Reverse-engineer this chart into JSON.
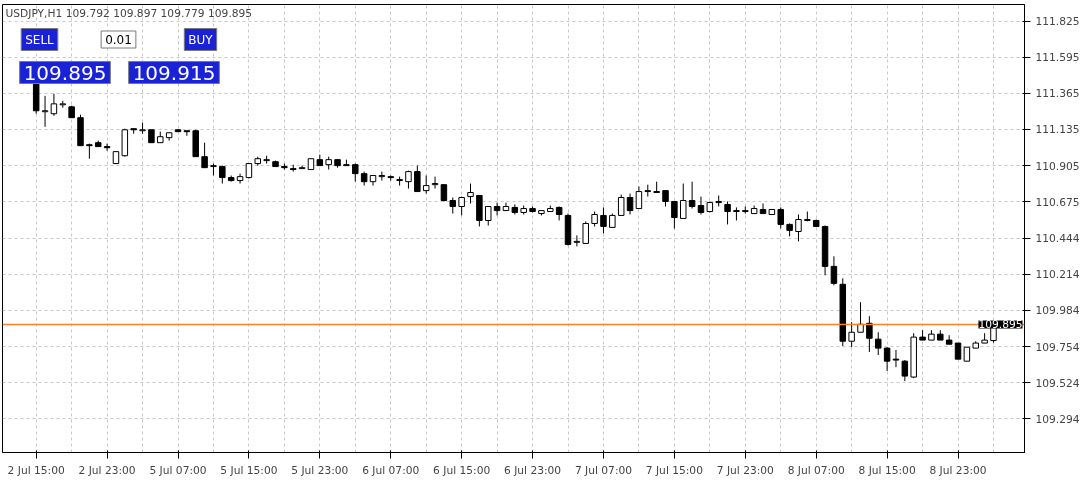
{
  "chart_data": {
    "type": "candlestick",
    "title": "USDJPY,H1 109.792 109.897 109.779 109.895",
    "color": "#000000",
    "categories": [
      "2 Jul 15:00",
      null,
      null,
      null,
      null,
      null,
      null,
      null,
      "2 Jul 23:00",
      null,
      null,
      null,
      null,
      null,
      null,
      null,
      "5 Jul 07:00",
      null,
      null,
      null,
      null,
      null,
      null,
      null,
      "5 Jul 15:00",
      null,
      null,
      null,
      null,
      null,
      null,
      null,
      "5 Jul 23:00",
      null,
      null,
      null,
      null,
      null,
      null,
      null,
      "6 Jul 07:00",
      null,
      null,
      null,
      null,
      null,
      null,
      null,
      "6 Jul 15:00",
      null,
      null,
      null,
      null,
      null,
      null,
      null,
      "6 Jul 23:00",
      null,
      null,
      null,
      null,
      null,
      null,
      null,
      "7 Jul 07:00",
      null,
      null,
      null,
      null,
      null,
      null,
      null,
      "7 Jul 15:00",
      null,
      null,
      null,
      null,
      null,
      null,
      null,
      "7 Jul 23:00",
      null,
      null,
      null,
      null,
      null,
      null,
      null,
      "8 Jul 07:00",
      null,
      null,
      null,
      null,
      null,
      null,
      null,
      "8 Jul 15:00",
      null,
      null,
      null,
      null,
      null,
      null,
      null,
      "8 Jul 23:00",
      null,
      null,
      null,
      null
    ],
    "ohlc": [
      [
        111.425,
        111.432,
        111.235,
        111.254
      ],
      [
        111.248,
        111.349,
        111.152,
        111.254
      ],
      [
        111.235,
        111.362,
        111.222,
        111.298
      ],
      [
        111.292,
        111.317,
        111.273,
        111.298
      ],
      [
        111.279,
        111.286,
        111.21,
        111.21
      ],
      [
        111.21,
        111.229,
        111.032,
        111.032
      ],
      [
        111.038,
        111.045,
        110.949,
        111.032
      ],
      [
        111.051,
        111.064,
        111.026,
        111.026
      ],
      [
        111.026,
        111.045,
        111.0,
        111.019
      ],
      [
        110.918,
        110.994,
        110.918,
        110.994
      ],
      [
        110.968,
        111.14,
        110.962,
        111.133
      ],
      [
        111.14,
        111.14,
        111.108,
        111.133
      ],
      [
        111.127,
        111.178,
        111.108,
        111.133
      ],
      [
        111.133,
        111.133,
        111.051,
        111.051
      ],
      [
        111.051,
        111.121,
        111.051,
        111.089
      ],
      [
        111.083,
        111.114,
        111.064,
        111.114
      ],
      [
        111.133,
        111.133,
        111.121,
        111.121
      ],
      [
        111.127,
        111.127,
        111.095,
        111.121
      ],
      [
        111.127,
        111.133,
        110.962,
        110.962
      ],
      [
        110.962,
        111.051,
        110.892,
        110.892
      ],
      [
        110.899,
        110.918,
        110.842,
        110.905
      ],
      [
        110.899,
        110.905,
        110.791,
        110.829
      ],
      [
        110.829,
        110.842,
        110.803,
        110.81
      ],
      [
        110.81,
        110.854,
        110.791,
        110.835
      ],
      [
        110.829,
        110.918,
        110.823,
        110.918
      ],
      [
        110.918,
        110.962,
        110.905,
        110.949
      ],
      [
        110.937,
        110.968,
        110.918,
        110.943
      ],
      [
        110.93,
        110.937,
        110.899,
        110.899
      ],
      [
        110.899,
        110.918,
        110.88,
        110.892
      ],
      [
        110.886,
        110.911,
        110.867,
        110.88
      ],
      [
        110.886,
        110.905,
        110.886,
        110.892
      ],
      [
        110.88,
        110.949,
        110.88,
        110.949
      ],
      [
        110.943,
        110.975,
        110.905,
        110.905
      ],
      [
        110.911,
        110.962,
        110.88,
        110.943
      ],
      [
        110.943,
        110.943,
        110.892,
        110.905
      ],
      [
        110.911,
        110.943,
        110.905,
        110.905
      ],
      [
        110.911,
        110.918,
        110.803,
        110.854
      ],
      [
        110.854,
        110.867,
        110.778,
        110.803
      ],
      [
        110.803,
        110.842,
        110.778,
        110.842
      ],
      [
        110.835,
        110.867,
        110.81,
        110.842
      ],
      [
        110.835,
        110.842,
        110.81,
        110.829
      ],
      [
        110.816,
        110.835,
        110.778,
        110.81
      ],
      [
        110.803,
        110.873,
        110.759,
        110.867
      ],
      [
        110.867,
        110.905,
        110.74,
        110.74
      ],
      [
        110.746,
        110.842,
        110.727,
        110.778
      ],
      [
        110.784,
        110.835,
        110.759,
        110.791
      ],
      [
        110.784,
        110.784,
        110.677,
        110.683
      ],
      [
        110.683,
        110.702,
        110.6,
        110.645
      ],
      [
        110.645,
        110.708,
        110.588,
        110.702
      ],
      [
        110.708,
        110.791,
        110.664,
        110.734
      ],
      [
        110.715,
        110.715,
        110.518,
        110.556
      ],
      [
        110.556,
        110.645,
        110.524,
        110.645
      ],
      [
        110.645,
        110.67,
        110.588,
        110.619
      ],
      [
        110.619,
        110.67,
        110.619,
        110.645
      ],
      [
        110.639,
        110.658,
        110.594,
        110.607
      ],
      [
        110.607,
        110.651,
        110.594,
        110.632
      ],
      [
        110.632,
        110.645,
        110.607,
        110.613
      ],
      [
        110.6,
        110.619,
        110.588,
        110.619
      ],
      [
        110.613,
        110.651,
        110.613,
        110.632
      ],
      [
        110.639,
        110.645,
        110.556,
        110.594
      ],
      [
        110.588,
        110.6,
        110.397,
        110.404
      ],
      [
        110.417,
        110.461,
        110.391,
        110.423
      ],
      [
        110.41,
        110.55,
        110.41,
        110.537
      ],
      [
        110.537,
        110.613,
        110.518,
        110.594
      ],
      [
        110.588,
        110.639,
        110.474,
        110.518
      ],
      [
        110.512,
        110.6,
        110.512,
        110.588
      ],
      [
        110.588,
        110.721,
        110.588,
        110.702
      ],
      [
        110.702,
        110.727,
        110.594,
        110.619
      ],
      [
        110.632,
        110.772,
        110.632,
        110.74
      ],
      [
        110.74,
        110.784,
        110.708,
        110.746
      ],
      [
        110.74,
        110.803,
        110.734,
        110.734
      ],
      [
        110.746,
        110.746,
        110.645,
        110.677
      ],
      [
        110.677,
        110.677,
        110.505,
        110.575
      ],
      [
        110.569,
        110.791,
        110.569,
        110.683
      ],
      [
        110.683,
        110.803,
        110.632,
        110.645
      ],
      [
        110.651,
        110.708,
        110.594,
        110.607
      ],
      [
        110.613,
        110.677,
        110.607,
        110.67
      ],
      [
        110.67,
        110.715,
        110.645,
        110.677
      ],
      [
        110.658,
        110.677,
        110.531,
        110.613
      ],
      [
        110.619,
        110.639,
        110.556,
        110.613
      ],
      [
        110.613,
        110.645,
        110.6,
        110.619
      ],
      [
        110.6,
        110.651,
        110.6,
        110.632
      ],
      [
        110.626,
        110.664,
        110.6,
        110.6
      ],
      [
        110.594,
        110.626,
        110.594,
        110.626
      ],
      [
        110.626,
        110.639,
        110.505,
        110.531
      ],
      [
        110.531,
        110.537,
        110.455,
        110.493
      ],
      [
        110.486,
        110.594,
        110.423,
        110.562
      ],
      [
        110.556,
        110.613,
        110.55,
        110.562
      ],
      [
        110.556,
        110.562,
        110.518,
        110.518
      ],
      [
        110.518,
        110.524,
        110.207,
        110.264
      ],
      [
        110.264,
        110.328,
        110.144,
        110.156
      ],
      [
        110.15,
        110.188,
        109.757,
        109.788
      ],
      [
        109.788,
        109.909,
        109.75,
        109.845
      ],
      [
        109.845,
        110.036,
        109.845,
        109.896
      ],
      [
        109.902,
        109.947,
        109.719,
        109.807
      ],
      [
        109.801,
        109.845,
        109.7,
        109.744
      ],
      [
        109.744,
        109.75,
        109.598,
        109.661
      ],
      [
        109.674,
        109.732,
        109.623,
        109.668
      ],
      [
        109.661,
        109.668,
        109.534,
        109.566
      ],
      [
        109.56,
        109.839,
        109.553,
        109.814
      ],
      [
        109.814,
        109.858,
        109.795,
        109.795
      ],
      [
        109.795,
        109.858,
        109.795,
        109.833
      ],
      [
        109.833,
        109.858,
        109.795,
        109.795
      ],
      [
        109.795,
        109.826,
        109.769,
        109.769
      ],
      [
        109.776,
        109.776,
        109.674,
        109.674
      ],
      [
        109.661,
        109.75,
        109.661,
        109.75
      ],
      [
        109.744,
        109.788,
        109.744,
        109.776
      ],
      [
        109.776,
        109.839,
        109.776,
        109.795
      ],
      [
        109.792,
        109.897,
        109.779,
        109.895
      ]
    ],
    "ylim": [
      109.08,
      111.93
    ],
    "yticks": [
      109.294,
      109.524,
      109.754,
      109.984,
      110.214,
      110.444,
      110.675,
      110.905,
      111.135,
      111.365,
      111.595,
      111.825
    ],
    "ref_lines": [
      {
        "axis": "y",
        "value": 109.895,
        "label": "109.895",
        "color": "#ff7f27"
      }
    ],
    "annotations": [
      "SELL",
      "0.01",
      "BUY",
      "109.895",
      "109.915"
    ],
    "grid": true
  }
}
